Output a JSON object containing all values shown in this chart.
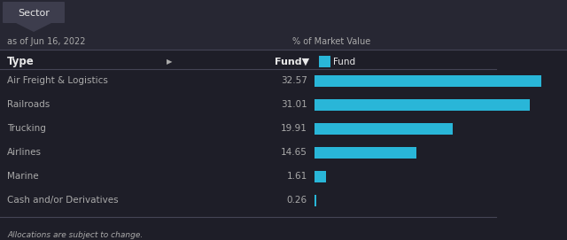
{
  "title_tab": "Sector",
  "date_label": "as of Jun 16, 2022",
  "col_header_right": "% of Market Value",
  "col_type": "Type",
  "legend_label": "Fund",
  "footer": "Allocations are subject to change.",
  "bg_top": "#272733",
  "bg_main": "#1e1e28",
  "bg_row_alt": "#222230",
  "bar_color": "#29b6d8",
  "text_white": "#e8e8e8",
  "text_dim": "#aaaaaa",
  "tab_bg": "#3d3d4d",
  "sep_color": "#444455",
  "categories": [
    "Air Freight & Logistics",
    "Railroads",
    "Trucking",
    "Airlines",
    "Marine",
    "Cash and/or Derivatives"
  ],
  "values": [
    32.57,
    31.01,
    19.91,
    14.65,
    1.61,
    0.26
  ],
  "max_value": 33.5
}
